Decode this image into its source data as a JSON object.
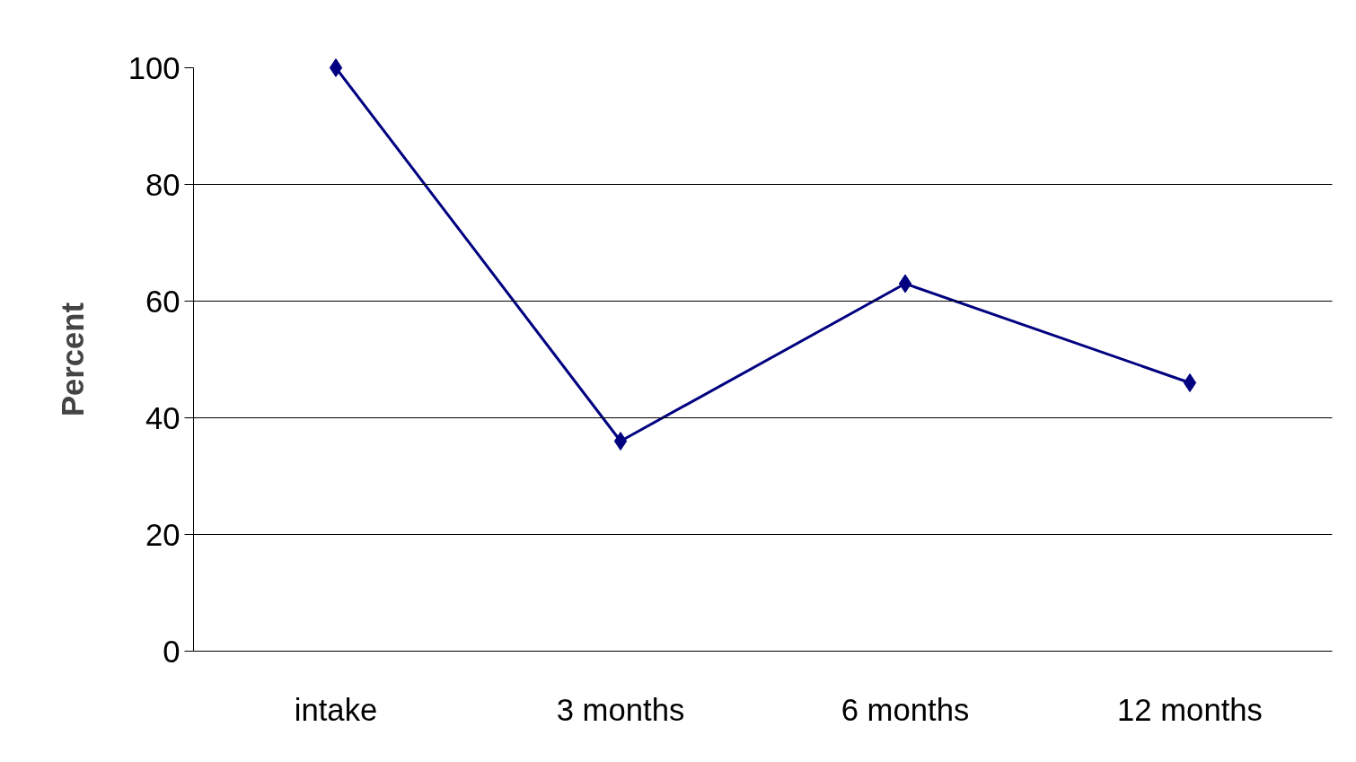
{
  "chart_data": {
    "type": "line",
    "ylabel": "Percent",
    "categories": [
      "intake",
      "3 months",
      "6 months",
      "12 months"
    ],
    "series": [
      {
        "color": "#000080",
        "values": [
          100,
          36,
          63,
          46
        ]
      }
    ],
    "ylim": [
      0,
      100
    ],
    "yticks": [
      0,
      20,
      40,
      60,
      80,
      100
    ],
    "grid": "y",
    "marker": "diamond",
    "line_style": "solid"
  }
}
